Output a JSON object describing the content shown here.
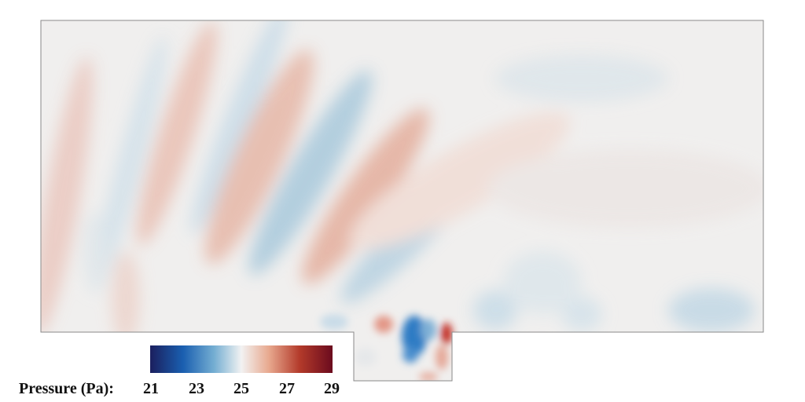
{
  "figure": {
    "colorbar": {
      "title": "Pressure (Pa):",
      "ticks": [
        "21",
        "23",
        "25",
        "27",
        "29"
      ],
      "range": [
        21,
        29
      ],
      "stops": [
        "#1b1f5e",
        "#1a5fb0",
        "#74aed2",
        "#f2f2f2",
        "#e8a98f",
        "#b33a2a",
        "#6b0b1e"
      ]
    },
    "field_colors": {
      "background": "#f0efee",
      "positive": "#e9b3a4",
      "negative": "#9cc3d8",
      "strong_positive": "#c0281f",
      "strong_negative": "#1762b3"
    }
  }
}
